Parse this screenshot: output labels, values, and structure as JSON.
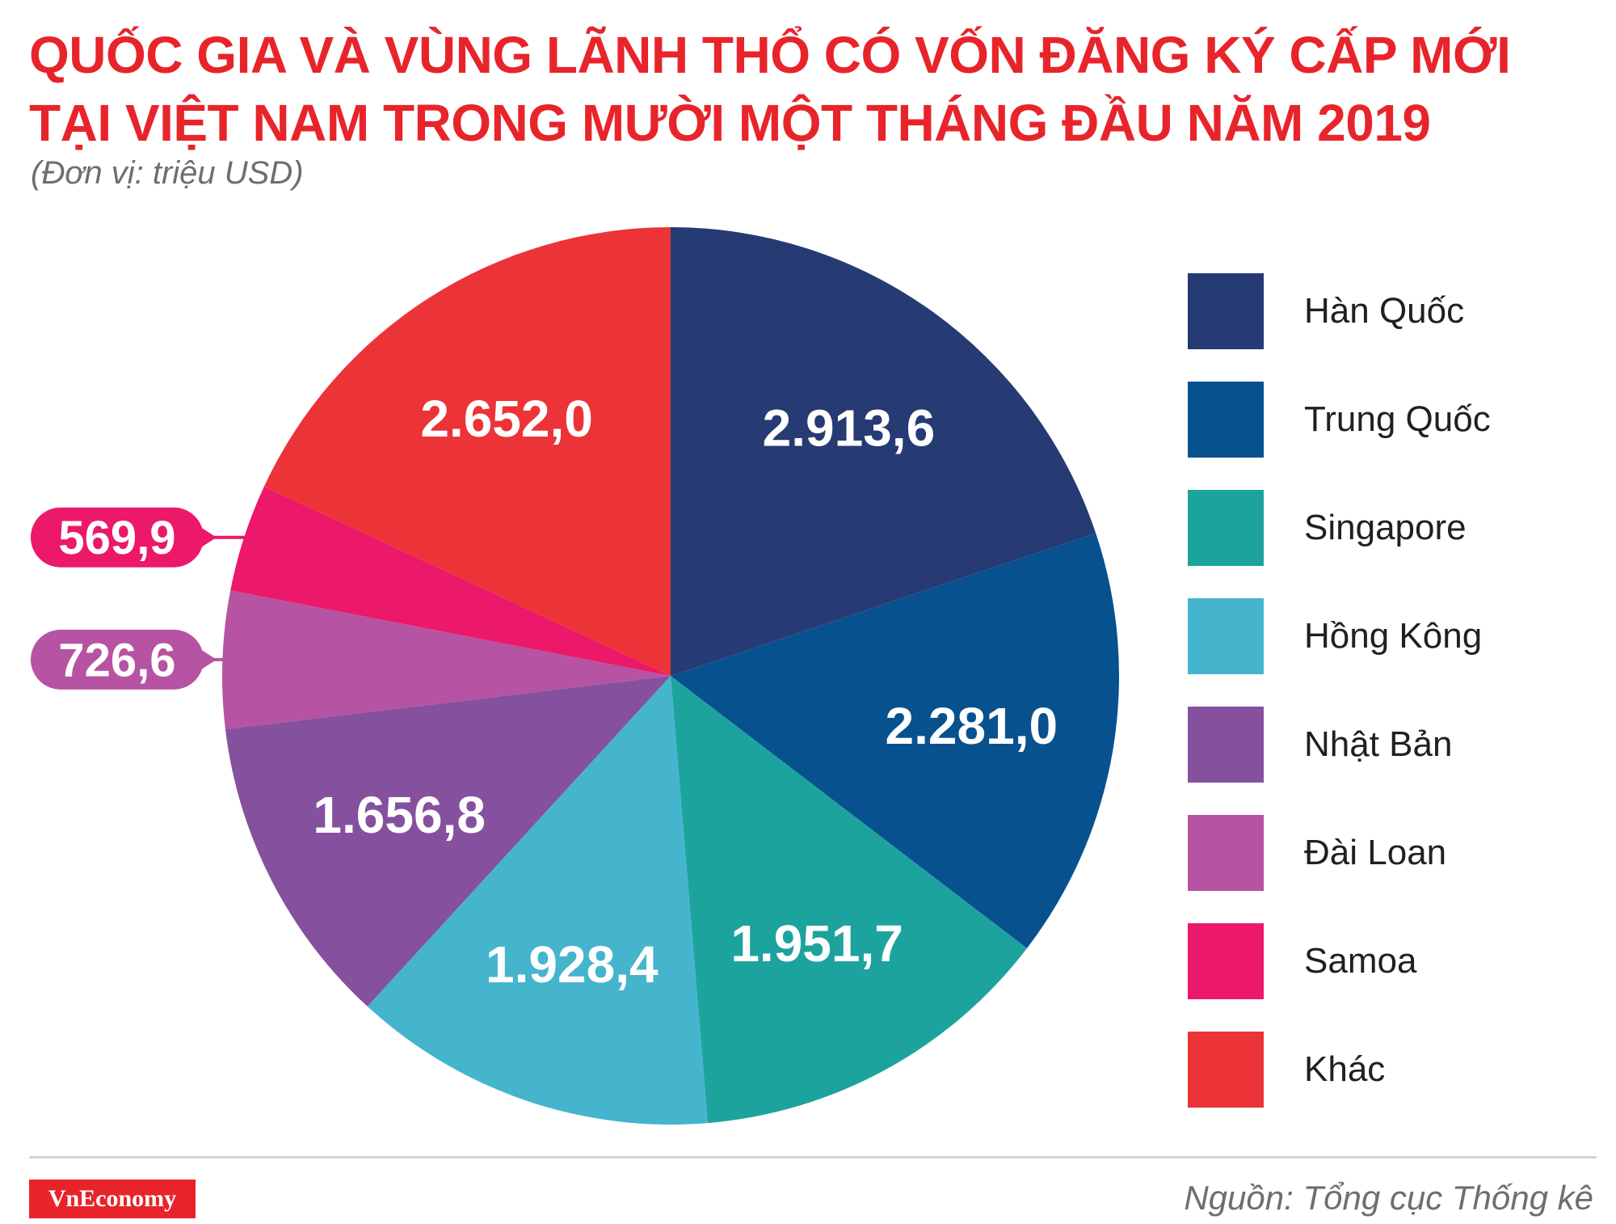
{
  "header": {
    "title_line1": "QUỐC GIA VÀ VÙNG LÃNH THỔ CÓ VỐN ĐĂNG KÝ CẤP MỚI",
    "title_line2": "TẠI VIỆT NAM TRONG MƯỜI MỘT THÁNG ĐẦU NĂM 2019",
    "unit": "(Đơn vị: triệu USD)"
  },
  "chart_data": {
    "type": "pie",
    "title": "QUỐC GIA VÀ VÙNG LÃNH THỔ CÓ VỐN ĐĂNG KÝ CẤP MỚI TẠI VIỆT NAM TRONG MƯỜI MỘT THÁNG ĐẦU NĂM 2019",
    "unit": "triệu USD",
    "start": "top, clockwise",
    "legend_position": "right",
    "slices": [
      {
        "label": "Hàn Quốc",
        "value": 2913.6,
        "display": "2.913,6",
        "color": "#263a73"
      },
      {
        "label": "Trung Quốc",
        "value": 2281.0,
        "display": "2.281,0",
        "color": "#07518f"
      },
      {
        "label": "Singapore",
        "value": 1951.7,
        "display": "1.951,7",
        "color": "#1da39e"
      },
      {
        "label": "Hồng Kông",
        "value": 1928.4,
        "display": "1.928,4",
        "color": "#45b4cd"
      },
      {
        "label": "Nhật Bản",
        "value": 1656.8,
        "display": "1.656,8",
        "color": "#85519f"
      },
      {
        "label": "Đài Loan",
        "value": 726.6,
        "display": "726,6",
        "color": "#b653a2",
        "callout": true
      },
      {
        "label": "Samoa",
        "value": 569.9,
        "display": "569,9",
        "color": "#ec1869",
        "callout": true
      },
      {
        "label": "Khác",
        "value": 2652.0,
        "display": "2.652,0",
        "color": "#ec3338"
      }
    ]
  },
  "footer": {
    "brand": "VnEconomy",
    "source": "Nguồn: Tổng cục Thống kê"
  }
}
